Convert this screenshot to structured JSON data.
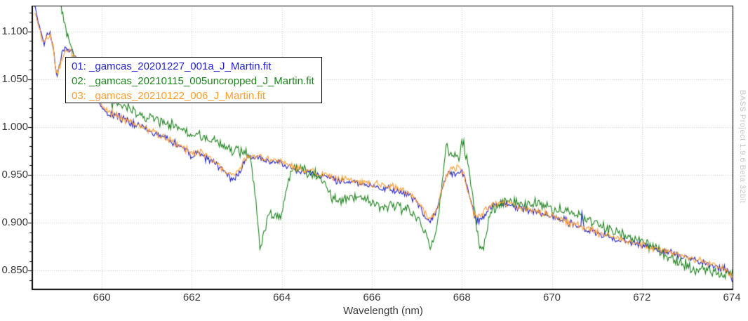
{
  "app": {
    "watermark": "BASS Project 1.9.6 Beta 32bit"
  },
  "chart_data": {
    "type": "line",
    "title": "",
    "xlabel": "Wavelength (nm)",
    "ylabel": "",
    "xlim": [
      658.47,
      674.03
    ],
    "ylim": [
      0.831,
      1.127
    ],
    "x_ticks": [
      660,
      662,
      664,
      666,
      668,
      670,
      672,
      674
    ],
    "x_tick_labels": [
      "660",
      "662",
      "664",
      "666",
      "668",
      "670",
      "672",
      "674"
    ],
    "y_ticks": [
      1.1,
      1.05,
      1.0,
      0.95,
      0.9,
      0.85
    ],
    "y_tick_labels": [
      "1.100",
      "1.050",
      "1.000",
      "0.950",
      "0.900",
      "0.850"
    ],
    "y_minor_tick_step": 0.01,
    "grid": true,
    "legend_position": "top-left",
    "colors": {
      "grid": "#c9c9c9",
      "axis": "#000000",
      "tick_text": "#3a3a3a",
      "plot_background": "#ffffff"
    },
    "series": [
      {
        "name": "01: _gamcas_20201227_001a_J_Martin.fit",
        "color": "#2222cc",
        "noise": 0.003,
        "points": [
          [
            658.5,
            1.126
          ],
          [
            658.55,
            1.12
          ],
          [
            658.62,
            1.102
          ],
          [
            658.68,
            1.092
          ],
          [
            658.72,
            1.086
          ],
          [
            658.78,
            1.097
          ],
          [
            658.84,
            1.098
          ],
          [
            658.9,
            1.09
          ],
          [
            658.95,
            1.072
          ],
          [
            659.0,
            1.054
          ],
          [
            659.05,
            1.066
          ],
          [
            659.1,
            1.075
          ],
          [
            659.18,
            1.082
          ],
          [
            659.28,
            1.08
          ],
          [
            659.38,
            1.078
          ],
          [
            659.5,
            1.062
          ],
          [
            659.62,
            1.05
          ],
          [
            659.72,
            1.046
          ],
          [
            659.8,
            1.05
          ],
          [
            659.9,
            1.03
          ],
          [
            660.0,
            1.022
          ],
          [
            660.15,
            1.014
          ],
          [
            660.3,
            1.011
          ],
          [
            660.5,
            1.008
          ],
          [
            660.75,
            1.003
          ],
          [
            661.0,
            0.998
          ],
          [
            661.25,
            0.991
          ],
          [
            661.5,
            0.986
          ],
          [
            661.75,
            0.98
          ],
          [
            662.0,
            0.969
          ],
          [
            662.15,
            0.973
          ],
          [
            662.3,
            0.968
          ],
          [
            662.5,
            0.963
          ],
          [
            662.7,
            0.955
          ],
          [
            662.85,
            0.948
          ],
          [
            662.95,
            0.946
          ],
          [
            663.05,
            0.952
          ],
          [
            663.15,
            0.962
          ],
          [
            663.25,
            0.969
          ],
          [
            663.4,
            0.968
          ],
          [
            663.55,
            0.967
          ],
          [
            663.7,
            0.965
          ],
          [
            663.85,
            0.964
          ],
          [
            664.0,
            0.963
          ],
          [
            664.15,
            0.958
          ],
          [
            664.35,
            0.954
          ],
          [
            664.6,
            0.952
          ],
          [
            664.85,
            0.949
          ],
          [
            665.1,
            0.946
          ],
          [
            665.4,
            0.943
          ],
          [
            665.7,
            0.941
          ],
          [
            666.0,
            0.939
          ],
          [
            666.3,
            0.936
          ],
          [
            666.6,
            0.933
          ],
          [
            666.85,
            0.929
          ],
          [
            667.0,
            0.922
          ],
          [
            667.1,
            0.913
          ],
          [
            667.22,
            0.901
          ],
          [
            667.32,
            0.902
          ],
          [
            667.42,
            0.911
          ],
          [
            667.52,
            0.928
          ],
          [
            667.62,
            0.947
          ],
          [
            667.72,
            0.952
          ],
          [
            667.82,
            0.95
          ],
          [
            667.92,
            0.953
          ],
          [
            668.0,
            0.954
          ],
          [
            668.08,
            0.946
          ],
          [
            668.18,
            0.925
          ],
          [
            668.28,
            0.906
          ],
          [
            668.38,
            0.902
          ],
          [
            668.48,
            0.906
          ],
          [
            668.58,
            0.913
          ],
          [
            668.7,
            0.918
          ],
          [
            668.85,
            0.92
          ],
          [
            669.0,
            0.919
          ],
          [
            669.25,
            0.916
          ],
          [
            669.5,
            0.913
          ],
          [
            669.75,
            0.91
          ],
          [
            670.0,
            0.907
          ],
          [
            670.3,
            0.902
          ],
          [
            670.55,
            0.896
          ],
          [
            670.64,
            0.894
          ],
          [
            670.67,
            0.913
          ],
          [
            670.7,
            0.894
          ],
          [
            671.0,
            0.889
          ],
          [
            671.3,
            0.885
          ],
          [
            671.6,
            0.881
          ],
          [
            672.0,
            0.876
          ],
          [
            672.4,
            0.871
          ],
          [
            672.8,
            0.866
          ],
          [
            673.1,
            0.862
          ],
          [
            673.4,
            0.858
          ],
          [
            673.7,
            0.854
          ],
          [
            673.95,
            0.85
          ],
          [
            674.03,
            0.834
          ]
        ]
      },
      {
        "name": "02: _gamcas_20210115_005uncropped_J_Martin.fit",
        "color": "#1e821e",
        "noise": 0.0042,
        "points": [
          [
            659.09,
            1.126
          ],
          [
            659.15,
            1.112
          ],
          [
            659.22,
            1.098
          ],
          [
            659.3,
            1.085
          ],
          [
            659.38,
            1.072
          ],
          [
            659.45,
            1.064
          ],
          [
            659.6,
            1.052
          ],
          [
            659.8,
            1.04
          ],
          [
            660.0,
            1.032
          ],
          [
            660.3,
            1.024
          ],
          [
            660.6,
            1.018
          ],
          [
            660.9,
            1.013
          ],
          [
            661.2,
            1.008
          ],
          [
            661.5,
            1.003
          ],
          [
            661.8,
            1.0
          ],
          [
            661.95,
            0.992
          ],
          [
            662.1,
            0.994
          ],
          [
            662.25,
            0.99
          ],
          [
            662.4,
            0.986
          ],
          [
            662.55,
            0.988
          ],
          [
            662.7,
            0.98
          ],
          [
            662.85,
            0.976
          ],
          [
            663.0,
            0.976
          ],
          [
            663.15,
            0.973
          ],
          [
            663.28,
            0.97
          ],
          [
            663.36,
            0.948
          ],
          [
            663.44,
            0.912
          ],
          [
            663.52,
            0.874
          ],
          [
            663.58,
            0.885
          ],
          [
            663.66,
            0.9
          ],
          [
            663.74,
            0.912
          ],
          [
            663.82,
            0.907
          ],
          [
            663.9,
            0.904
          ],
          [
            663.98,
            0.906
          ],
          [
            664.04,
            0.921
          ],
          [
            664.1,
            0.933
          ],
          [
            664.16,
            0.947
          ],
          [
            664.25,
            0.956
          ],
          [
            664.4,
            0.959
          ],
          [
            664.55,
            0.953
          ],
          [
            664.7,
            0.951
          ],
          [
            664.85,
            0.947
          ],
          [
            664.95,
            0.94
          ],
          [
            665.05,
            0.93
          ],
          [
            665.2,
            0.924
          ],
          [
            665.35,
            0.923
          ],
          [
            665.5,
            0.928
          ],
          [
            665.65,
            0.926
          ],
          [
            665.8,
            0.924
          ],
          [
            666.0,
            0.921
          ],
          [
            666.2,
            0.916
          ],
          [
            666.4,
            0.918
          ],
          [
            666.6,
            0.916
          ],
          [
            666.8,
            0.913
          ],
          [
            666.95,
            0.909
          ],
          [
            667.08,
            0.9
          ],
          [
            667.2,
            0.886
          ],
          [
            667.3,
            0.875
          ],
          [
            667.4,
            0.889
          ],
          [
            667.5,
            0.914
          ],
          [
            667.58,
            0.948
          ],
          [
            667.65,
            0.982
          ],
          [
            667.72,
            0.972
          ],
          [
            667.8,
            0.968
          ],
          [
            667.87,
            0.974
          ],
          [
            667.93,
            0.964
          ],
          [
            668.0,
            0.988
          ],
          [
            668.06,
            0.978
          ],
          [
            668.14,
            0.96
          ],
          [
            668.22,
            0.938
          ],
          [
            668.3,
            0.908
          ],
          [
            668.38,
            0.876
          ],
          [
            668.44,
            0.872
          ],
          [
            668.52,
            0.882
          ],
          [
            668.6,
            0.902
          ],
          [
            668.7,
            0.914
          ],
          [
            668.85,
            0.92
          ],
          [
            669.0,
            0.922
          ],
          [
            669.2,
            0.921
          ],
          [
            669.4,
            0.919
          ],
          [
            669.6,
            0.921
          ],
          [
            669.8,
            0.917
          ],
          [
            670.0,
            0.915
          ],
          [
            670.2,
            0.913
          ],
          [
            670.45,
            0.911
          ],
          [
            670.7,
            0.906
          ],
          [
            670.95,
            0.9
          ],
          [
            671.2,
            0.894
          ],
          [
            671.5,
            0.889
          ],
          [
            671.8,
            0.884
          ],
          [
            672.1,
            0.878
          ],
          [
            672.4,
            0.87
          ],
          [
            672.7,
            0.861
          ],
          [
            673.0,
            0.856
          ],
          [
            673.2,
            0.849
          ],
          [
            673.4,
            0.853
          ],
          [
            673.6,
            0.847
          ],
          [
            673.8,
            0.844
          ],
          [
            673.95,
            0.847
          ],
          [
            674.03,
            0.852
          ]
        ]
      },
      {
        "name": "03: _gamcas_20210122_006_J_Martin.fit",
        "color": "#ff9e2e",
        "noise": 0.003,
        "points": [
          [
            658.5,
            1.121
          ],
          [
            658.56,
            1.113
          ],
          [
            658.63,
            1.098
          ],
          [
            658.7,
            1.088
          ],
          [
            658.76,
            1.094
          ],
          [
            658.84,
            1.095
          ],
          [
            658.92,
            1.085
          ],
          [
            658.98,
            1.06
          ],
          [
            659.03,
            1.056
          ],
          [
            659.1,
            1.072
          ],
          [
            659.2,
            1.08
          ],
          [
            659.3,
            1.078
          ],
          [
            659.42,
            1.072
          ],
          [
            659.55,
            1.056
          ],
          [
            659.68,
            1.044
          ],
          [
            659.76,
            1.043
          ],
          [
            659.85,
            1.04
          ],
          [
            659.95,
            1.027
          ],
          [
            660.1,
            1.018
          ],
          [
            660.3,
            1.012
          ],
          [
            660.55,
            1.007
          ],
          [
            660.8,
            1.002
          ],
          [
            661.05,
            0.997
          ],
          [
            661.3,
            0.991
          ],
          [
            661.55,
            0.986
          ],
          [
            661.8,
            0.979
          ],
          [
            662.0,
            0.972
          ],
          [
            662.2,
            0.974
          ],
          [
            662.4,
            0.968
          ],
          [
            662.6,
            0.96
          ],
          [
            662.8,
            0.951
          ],
          [
            662.95,
            0.949
          ],
          [
            663.1,
            0.96
          ],
          [
            663.25,
            0.97
          ],
          [
            663.45,
            0.969
          ],
          [
            663.65,
            0.967
          ],
          [
            663.85,
            0.965
          ],
          [
            664.05,
            0.963
          ],
          [
            664.25,
            0.958
          ],
          [
            664.5,
            0.955
          ],
          [
            664.75,
            0.952
          ],
          [
            665.0,
            0.949
          ],
          [
            665.3,
            0.946
          ],
          [
            665.6,
            0.943
          ],
          [
            665.9,
            0.941
          ],
          [
            666.2,
            0.939
          ],
          [
            666.5,
            0.937
          ],
          [
            666.8,
            0.932
          ],
          [
            667.0,
            0.925
          ],
          [
            667.12,
            0.915
          ],
          [
            667.25,
            0.904
          ],
          [
            667.35,
            0.906
          ],
          [
            667.45,
            0.915
          ],
          [
            667.55,
            0.932
          ],
          [
            667.65,
            0.947
          ],
          [
            667.75,
            0.957
          ],
          [
            667.85,
            0.956
          ],
          [
            667.95,
            0.959
          ],
          [
            668.05,
            0.95
          ],
          [
            668.15,
            0.93
          ],
          [
            668.25,
            0.911
          ],
          [
            668.35,
            0.904
          ],
          [
            668.45,
            0.908
          ],
          [
            668.55,
            0.914
          ],
          [
            668.7,
            0.919
          ],
          [
            668.9,
            0.921
          ],
          [
            669.1,
            0.918
          ],
          [
            669.35,
            0.915
          ],
          [
            669.6,
            0.912
          ],
          [
            669.9,
            0.909
          ],
          [
            670.2,
            0.904
          ],
          [
            670.5,
            0.898
          ],
          [
            670.8,
            0.893
          ],
          [
            671.1,
            0.888
          ],
          [
            671.4,
            0.884
          ],
          [
            671.8,
            0.879
          ],
          [
            672.2,
            0.874
          ],
          [
            672.6,
            0.869
          ],
          [
            673.0,
            0.864
          ],
          [
            673.3,
            0.86
          ],
          [
            673.6,
            0.856
          ],
          [
            673.85,
            0.851
          ],
          [
            674.0,
            0.847
          ],
          [
            674.03,
            0.843
          ]
        ]
      }
    ]
  }
}
